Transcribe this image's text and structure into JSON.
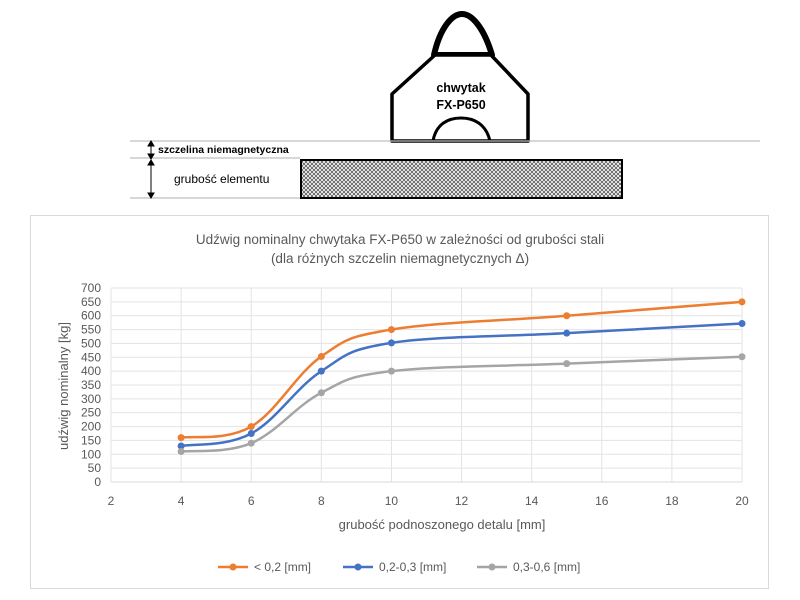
{
  "diagram": {
    "gripper_name": "chwytak",
    "gripper_model": "FX-P650",
    "gap_label": "szczelina niemagnetyczna",
    "thickness_label": "grubość elementu"
  },
  "chart_data": {
    "type": "line",
    "title": "Udźwig nominalny chwytaka FX-P650 w zależności od grubości stali",
    "subtitle": "(dla różnych szczelin niemagnetycznych Δ)",
    "xlabel": "grubość podnoszonego detalu [mm]",
    "ylabel": "udźwig nominalny [kg]",
    "xlim": [
      2,
      20
    ],
    "ylim": [
      0,
      700
    ],
    "xticks": [
      2,
      4,
      6,
      8,
      10,
      12,
      14,
      16,
      18,
      20
    ],
    "yticks": [
      0,
      50,
      100,
      150,
      200,
      250,
      300,
      350,
      400,
      450,
      500,
      550,
      600,
      650,
      700
    ],
    "grid": true,
    "legend_position": "bottom",
    "x": [
      4,
      6,
      8,
      10,
      15,
      20
    ],
    "series": [
      {
        "name": "< 0,2 [mm]",
        "color": "#ed7d31",
        "values": [
          160,
          200,
          453,
          550,
          600,
          650
        ]
      },
      {
        "name": "0,2-0,3 [mm]",
        "color": "#4472c4",
        "values": [
          130,
          175,
          400,
          502,
          537,
          572
        ]
      },
      {
        "name": "0,3-0,6 [mm]",
        "color": "#a5a5a5",
        "values": [
          110,
          140,
          322,
          400,
          427,
          452
        ]
      }
    ]
  }
}
